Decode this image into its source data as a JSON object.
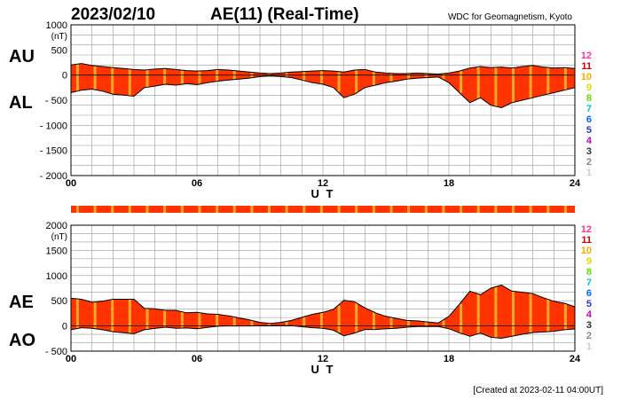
{
  "header": {
    "date": "2023/02/10",
    "title": "AE(11) (Real-Time)",
    "source": "WDC for Geomagnetism, Kyoto"
  },
  "footer": {
    "created": "[Created at 2023-02-11 04:00UT]"
  },
  "legend": {
    "values": [
      "12",
      "11",
      "10",
      "9",
      "8",
      "7",
      "6",
      "5",
      "4",
      "3",
      "2",
      "1"
    ],
    "colors": [
      "#ff3399",
      "#cc0000",
      "#ffaa00",
      "#dddd00",
      "#66dd00",
      "#00cccc",
      "#0066ff",
      "#3333cc",
      "#cc00cc",
      "#333333",
      "#888888",
      "#cccccc"
    ]
  },
  "colors": {
    "fill": "#ff3300",
    "highlight": "#ffaa22",
    "grid": "#999999",
    "line": "#000000",
    "strip": "#ff3300"
  },
  "chart_data": [
    {
      "type": "area",
      "name": "AU/AL",
      "labels": {
        "upper": "AU",
        "lower": "AL"
      },
      "unit": "(nT)",
      "ylim": [
        -2000,
        1000
      ],
      "yticks": [
        1000,
        500,
        0,
        -500,
        -1000,
        -1500,
        -2000
      ],
      "ytick_labels": [
        "1000",
        "500",
        "0",
        "- 500",
        "- 1000",
        "- 1500",
        "- 2000"
      ],
      "xlim": [
        0,
        24
      ],
      "xticks": [
        0,
        6,
        12,
        18,
        24
      ],
      "xtick_labels": [
        "00",
        "06",
        "12",
        "18",
        "24"
      ],
      "xlabel": "U T",
      "grid": true,
      "x": [
        0,
        0.5,
        1,
        1.5,
        2,
        2.5,
        3,
        3.5,
        4,
        4.5,
        5,
        5.5,
        6,
        6.5,
        7,
        7.5,
        8,
        8.5,
        9,
        9.5,
        10,
        10.5,
        11,
        11.5,
        12,
        12.5,
        13,
        13.5,
        14,
        14.5,
        15,
        15.5,
        16,
        16.5,
        17,
        17.5,
        18,
        18.5,
        19,
        19.5,
        20,
        20.5,
        21,
        21.5,
        22,
        22.5,
        23,
        23.5,
        24
      ],
      "series": [
        {
          "name": "AU",
          "values": [
            200,
            230,
            190,
            170,
            150,
            130,
            110,
            100,
            120,
            130,
            110,
            90,
            80,
            90,
            110,
            100,
            80,
            60,
            40,
            30,
            40,
            60,
            70,
            80,
            90,
            80,
            60,
            100,
            110,
            60,
            40,
            30,
            30,
            40,
            30,
            20,
            40,
            80,
            140,
            170,
            150,
            160,
            140,
            170,
            190,
            160,
            140,
            150,
            130
          ]
        },
        {
          "name": "AL",
          "values": [
            -350,
            -300,
            -280,
            -320,
            -380,
            -400,
            -420,
            -250,
            -220,
            -180,
            -200,
            -170,
            -190,
            -150,
            -120,
            -100,
            -80,
            -60,
            -30,
            -20,
            -30,
            -50,
            -100,
            -150,
            -180,
            -250,
            -450,
            -380,
            -250,
            -200,
            -150,
            -120,
            -80,
            -60,
            -50,
            -40,
            -150,
            -350,
            -550,
            -450,
            -600,
            -650,
            -550,
            -500,
            -450,
            -400,
            -350,
            -300,
            -250
          ]
        }
      ]
    },
    {
      "type": "area",
      "name": "AE/AO",
      "labels": {
        "upper": "AE",
        "lower": "AO"
      },
      "unit": "(nT)",
      "ylim": [
        -500,
        2000
      ],
      "yticks": [
        2000,
        1500,
        1000,
        500,
        0,
        -500
      ],
      "ytick_labels": [
        "2000",
        "1500",
        "1000",
        "500",
        "0",
        "- 500"
      ],
      "xlim": [
        0,
        24
      ],
      "xticks": [
        0,
        6,
        12,
        18,
        24
      ],
      "xtick_labels": [
        "00",
        "06",
        "12",
        "18",
        "24"
      ],
      "xlabel": "U T",
      "grid": true,
      "x": [
        0,
        0.5,
        1,
        1.5,
        2,
        2.5,
        3,
        3.5,
        4,
        4.5,
        5,
        5.5,
        6,
        6.5,
        7,
        7.5,
        8,
        8.5,
        9,
        9.5,
        10,
        10.5,
        11,
        11.5,
        12,
        12.5,
        13,
        13.5,
        14,
        14.5,
        15,
        15.5,
        16,
        16.5,
        17,
        17.5,
        18,
        18.5,
        19,
        19.5,
        20,
        20.5,
        21,
        21.5,
        22,
        22.5,
        23,
        23.5,
        24
      ],
      "series": [
        {
          "name": "AE",
          "values": [
            550,
            530,
            470,
            490,
            530,
            530,
            530,
            350,
            340,
            310,
            310,
            260,
            270,
            240,
            230,
            200,
            160,
            120,
            70,
            50,
            70,
            110,
            170,
            230,
            270,
            330,
            510,
            480,
            360,
            260,
            190,
            150,
            110,
            100,
            80,
            60,
            190,
            430,
            690,
            620,
            750,
            810,
            690,
            670,
            640,
            560,
            490,
            450,
            380
          ]
        },
        {
          "name": "AO",
          "values": [
            -75,
            -35,
            -45,
            -75,
            -115,
            -135,
            -155,
            -75,
            -50,
            -25,
            -45,
            -40,
            -55,
            -30,
            -5,
            0,
            0,
            0,
            5,
            5,
            5,
            5,
            -15,
            -35,
            -45,
            -85,
            -195,
            -140,
            -70,
            -70,
            -55,
            -45,
            -25,
            -10,
            -10,
            -10,
            -55,
            -135,
            -205,
            -140,
            -225,
            -245,
            -205,
            -165,
            -130,
            -120,
            -105,
            -75,
            -60
          ]
        }
      ]
    }
  ],
  "activity_strip": {
    "xlim": [
      0,
      24
    ]
  }
}
